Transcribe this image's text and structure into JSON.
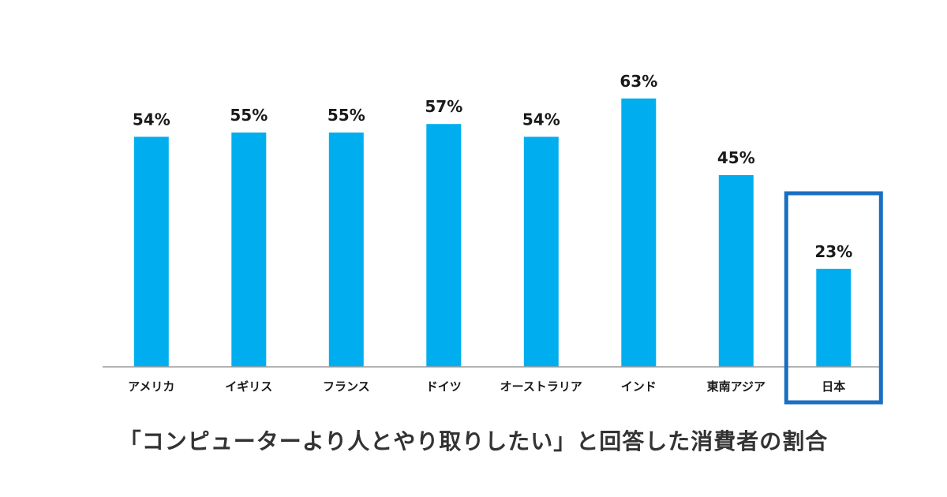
{
  "chart_data": {
    "type": "bar",
    "title": "「コンピューターより人とやり取りしたい」と回答した消費者の割合",
    "categories": [
      "アメリカ",
      "イギリス",
      "フランス",
      "ドイツ",
      "オーストラリア",
      "インド",
      "東南アジア",
      "日本"
    ],
    "values": [
      54,
      55,
      55,
      57,
      54,
      63,
      45,
      23
    ],
    "value_labels": [
      "54%",
      "55%",
      "55%",
      "57%",
      "54%",
      "63%",
      "45%",
      "23%"
    ],
    "unit": "%",
    "xlabel": "",
    "ylabel": "",
    "ylim": [
      0,
      66
    ],
    "grid": false,
    "legend": "none",
    "highlighted_category": "日本",
    "colors": {
      "bar": "#00aeef",
      "highlight_border": "#1a6fc2",
      "baseline": "#9a9a9a",
      "text": "#1a1a1a"
    }
  }
}
